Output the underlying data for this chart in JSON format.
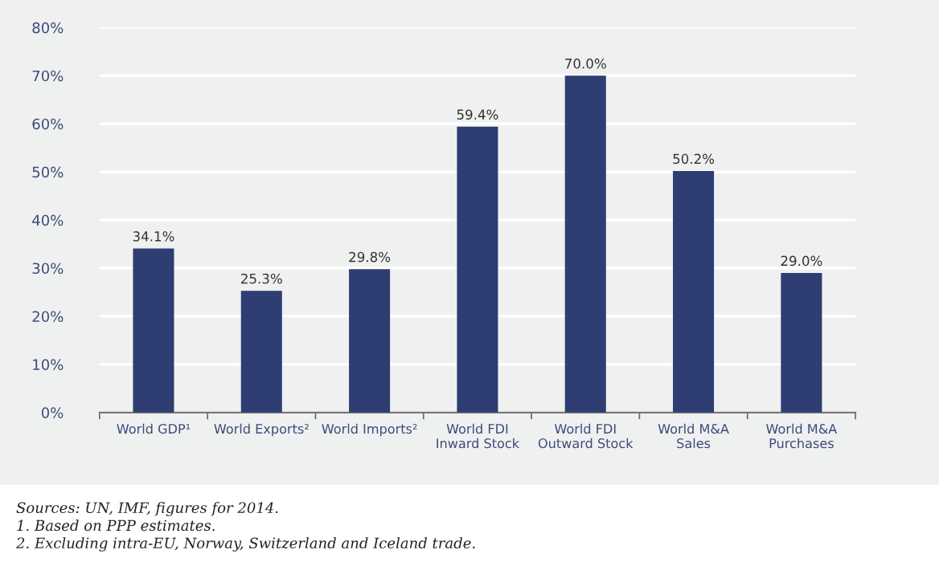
{
  "chart_data": {
    "type": "bar",
    "categories": [
      "World GDP¹",
      "World Exports²",
      "World Imports²",
      "World FDI\nInward Stock",
      "World FDI\nOutward Stock",
      "World M&A\nSales",
      "World M&A\nPurchases"
    ],
    "values": [
      34.1,
      25.3,
      29.8,
      59.4,
      70.0,
      50.2,
      29.0
    ],
    "value_labels": [
      "34.1%",
      "25.3%",
      "29.8%",
      "59.4%",
      "70.0%",
      "50.2%",
      "29.0%"
    ],
    "color": "#2e3d72",
    "ylim": [
      0,
      80
    ],
    "yticks": [
      {
        "value": 0,
        "label": "0%"
      },
      {
        "value": 10,
        "label": "10%"
      },
      {
        "value": 20,
        "label": "20%"
      },
      {
        "value": 30,
        "label": "30%"
      },
      {
        "value": 40,
        "label": "40%"
      },
      {
        "value": 50,
        "label": "50%"
      },
      {
        "value": 60,
        "label": "60%"
      },
      {
        "value": 70,
        "label": "70%"
      },
      {
        "value": 80,
        "label": "80%"
      }
    ],
    "grid": "y",
    "annotations": [
      "Sources: UN, IMF, figures for 2014.",
      "1. Based on PPP estimates.",
      "2. Excluding intra-EU, Norway, Switzerland and Iceland trade."
    ]
  }
}
